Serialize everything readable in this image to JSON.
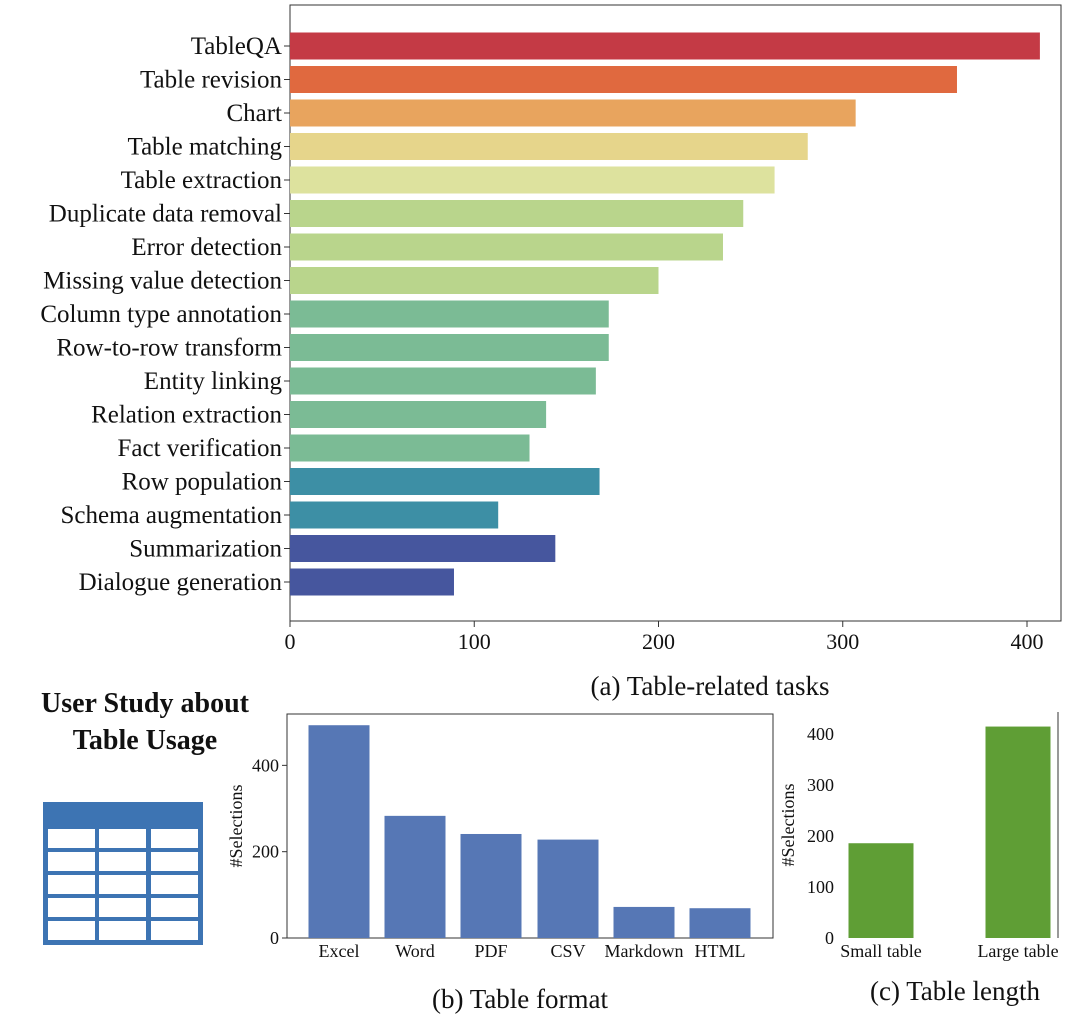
{
  "study_title": [
    "User Study about",
    "Table Usage"
  ],
  "table_icon": {
    "name": "table-grid-icon",
    "color": "#3d74b3"
  },
  "chart_data": [
    {
      "type": "bar",
      "orientation": "horizontal",
      "caption": "(a) Table-related tasks",
      "categories": [
        "TableQA",
        "Table revision",
        "Chart",
        "Table matching",
        "Table extraction",
        "Duplicate data removal",
        "Error detection",
        "Missing value detection",
        "Column type annotation",
        "Row-to-row transform",
        "Entity linking",
        "Relation extraction",
        "Fact verification",
        "Row population",
        "Schema augmentation",
        "Summarization",
        "Dialogue generation"
      ],
      "values": [
        407,
        362,
        307,
        281,
        263,
        246,
        235,
        200,
        173,
        173,
        166,
        139,
        130,
        168,
        113,
        144,
        89
      ],
      "colors": [
        "#c43a45",
        "#e0693f",
        "#e8a45e",
        "#e6d58b",
        "#dde29e",
        "#b9d58c",
        "#b9d58c",
        "#b9d58c",
        "#7bbb95",
        "#7bbb95",
        "#7bbb95",
        "#7bbb95",
        "#7bbb95",
        "#3d8fa5",
        "#3d8fa5",
        "#46569e",
        "#46569e"
      ],
      "xlim": [
        0,
        430
      ],
      "xticks": [
        0,
        100,
        200,
        300,
        400
      ],
      "xlabel": "",
      "ylabel": ""
    },
    {
      "type": "bar",
      "caption": "(b) Table format",
      "categories": [
        "Excel",
        "Word",
        "PDF",
        "CSV",
        "Markdown",
        "HTML"
      ],
      "values": [
        493,
        283,
        241,
        228,
        72,
        69
      ],
      "color": "#5677b5",
      "ylim": [
        0,
        510
      ],
      "yticks": [
        0,
        200,
        400
      ],
      "ylabel": "#Selections"
    },
    {
      "type": "bar",
      "caption": "(c) Table length",
      "categories": [
        "Small table",
        "Large table"
      ],
      "values": [
        186,
        415
      ],
      "color": "#5f9e35",
      "ylim": [
        0,
        445
      ],
      "yticks": [
        0,
        100,
        200,
        300,
        400
      ],
      "ylabel": "#Selections"
    }
  ]
}
